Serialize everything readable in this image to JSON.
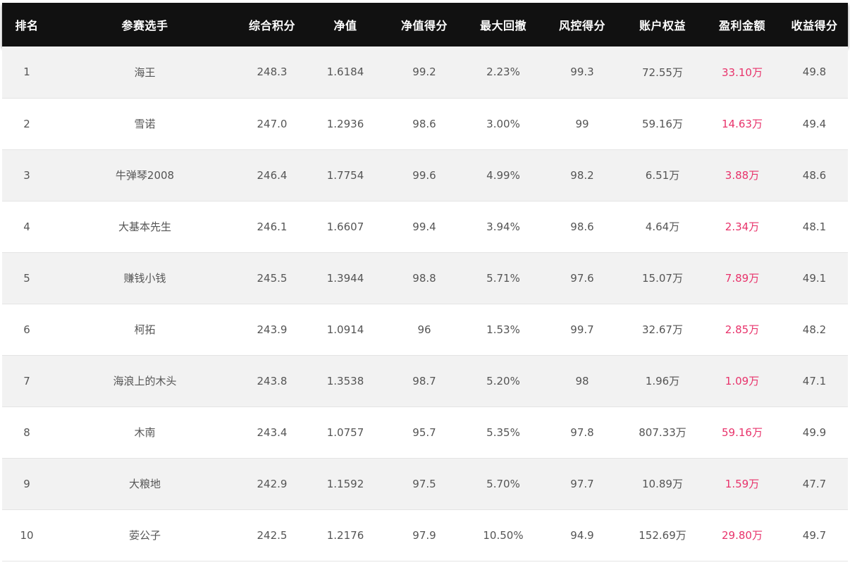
{
  "table": {
    "headers": {
      "rank": "排名",
      "player": "参赛选手",
      "total_score": "综合积分",
      "nav": "净值",
      "nav_score": "净值得分",
      "max_drawdown": "最大回撤",
      "risk_score": "风控得分",
      "equity": "账户权益",
      "profit": "盈利金额",
      "return_score": "收益得分"
    },
    "rows": [
      {
        "rank": "1",
        "player": "海王",
        "total_score": "248.3",
        "nav": "1.6184",
        "nav_score": "99.2",
        "max_drawdown": "2.23%",
        "risk_score": "99.3",
        "equity": "72.55万",
        "profit": "33.10万",
        "return_score": "49.8"
      },
      {
        "rank": "2",
        "player": "雪诺",
        "total_score": "247.0",
        "nav": "1.2936",
        "nav_score": "98.6",
        "max_drawdown": "3.00%",
        "risk_score": "99",
        "equity": "59.16万",
        "profit": "14.63万",
        "return_score": "49.4"
      },
      {
        "rank": "3",
        "player": "牛弹琴2008",
        "total_score": "246.4",
        "nav": "1.7754",
        "nav_score": "99.6",
        "max_drawdown": "4.99%",
        "risk_score": "98.2",
        "equity": "6.51万",
        "profit": "3.88万",
        "return_score": "48.6"
      },
      {
        "rank": "4",
        "player": "大基本先生",
        "total_score": "246.1",
        "nav": "1.6607",
        "nav_score": "99.4",
        "max_drawdown": "3.94%",
        "risk_score": "98.6",
        "equity": "4.64万",
        "profit": "2.34万",
        "return_score": "48.1"
      },
      {
        "rank": "5",
        "player": "赚钱小钱",
        "total_score": "245.5",
        "nav": "1.3944",
        "nav_score": "98.8",
        "max_drawdown": "5.71%",
        "risk_score": "97.6",
        "equity": "15.07万",
        "profit": "7.89万",
        "return_score": "49.1"
      },
      {
        "rank": "6",
        "player": "柯拓",
        "total_score": "243.9",
        "nav": "1.0914",
        "nav_score": "96",
        "max_drawdown": "1.53%",
        "risk_score": "99.7",
        "equity": "32.67万",
        "profit": "2.85万",
        "return_score": "48.2"
      },
      {
        "rank": "7",
        "player": "海浪上的木头",
        "total_score": "243.8",
        "nav": "1.3538",
        "nav_score": "98.7",
        "max_drawdown": "5.20%",
        "risk_score": "98",
        "equity": "1.96万",
        "profit": "1.09万",
        "return_score": "47.1"
      },
      {
        "rank": "8",
        "player": "木南",
        "total_score": "243.4",
        "nav": "1.0757",
        "nav_score": "95.7",
        "max_drawdown": "5.35%",
        "risk_score": "97.8",
        "equity": "807.33万",
        "profit": "59.16万",
        "return_score": "49.9"
      },
      {
        "rank": "9",
        "player": "大粮地",
        "total_score": "242.9",
        "nav": "1.1592",
        "nav_score": "97.5",
        "max_drawdown": "5.70%",
        "risk_score": "97.7",
        "equity": "10.89万",
        "profit": "1.59万",
        "return_score": "47.7"
      },
      {
        "rank": "10",
        "player": "荌公子",
        "total_score": "242.5",
        "nav": "1.2176",
        "nav_score": "97.9",
        "max_drawdown": "10.50%",
        "risk_score": "94.9",
        "equity": "152.69万",
        "profit": "29.80万",
        "return_score": "49.7"
      }
    ]
  },
  "colors": {
    "header_bg": "#111111",
    "profit_text": "#e8336b",
    "row_alt_bg": "#f2f2f2"
  }
}
